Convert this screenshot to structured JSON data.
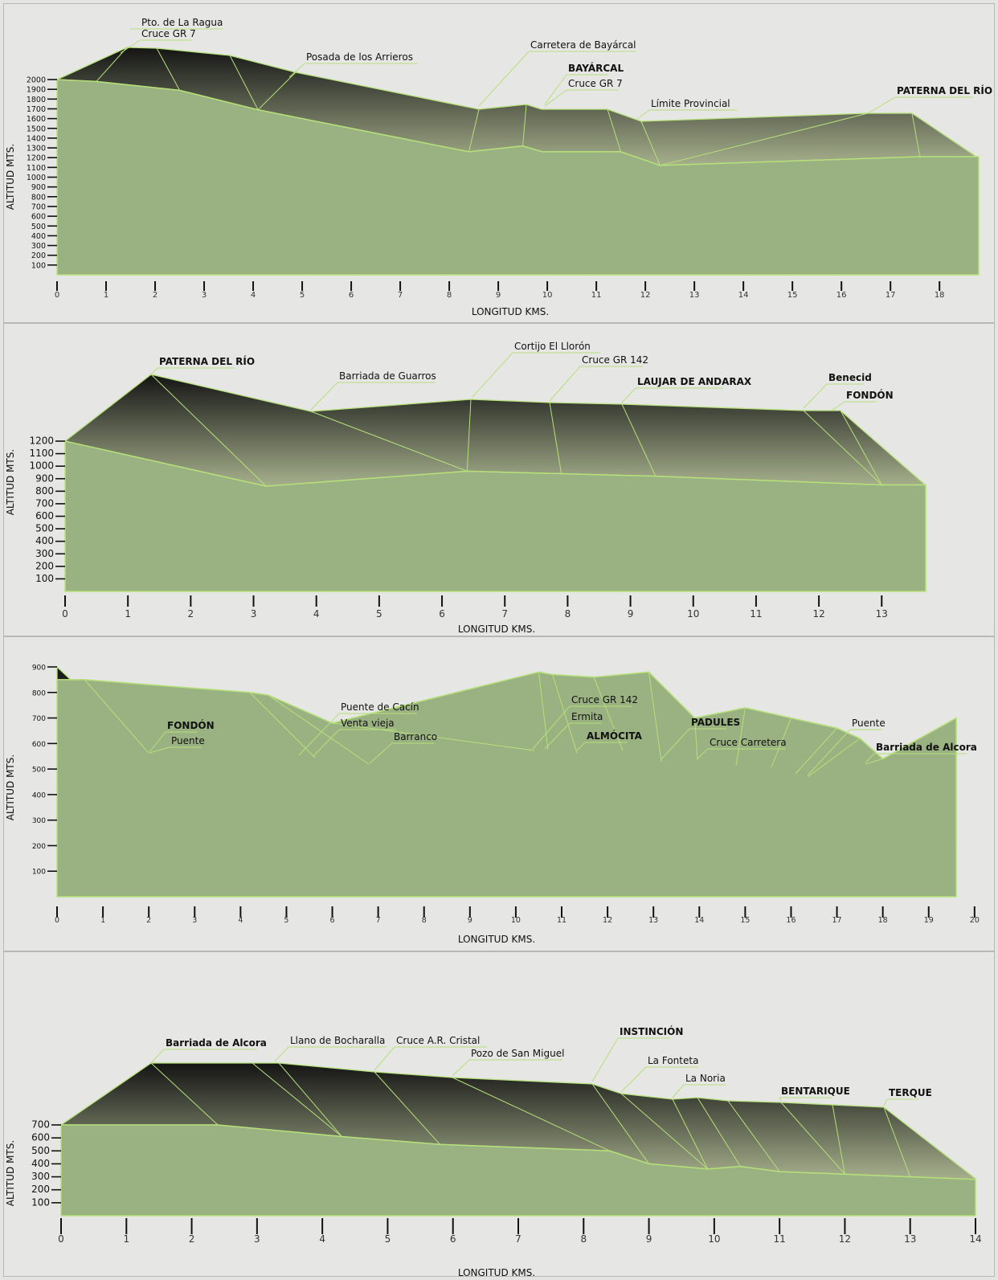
{
  "colors": {
    "background": "#e4e4e2",
    "ground_fill": "#9ab282",
    "profile_line": "#b6e07a",
    "block_top": "#141414",
    "block_bottom": "#a6b08c",
    "text": "#111111"
  },
  "chart_data": [
    {
      "type": "area",
      "xlabel": "LONGITUD KMS.",
      "ylabel": "ALTITUD MTS.",
      "xlim": [
        0,
        18.8
      ],
      "ylim": [
        0,
        2000
      ],
      "x_ticks": [
        "0",
        "1",
        "2",
        "3",
        "4",
        "5",
        "6",
        "7",
        "8",
        "9",
        "10",
        "11",
        "12",
        "13",
        "14",
        "15",
        "16",
        "17",
        "18"
      ],
      "y_ticks": [
        "100",
        "200",
        "300",
        "400",
        "500",
        "600",
        "700",
        "800",
        "900",
        "1000",
        "1100",
        "1200",
        "1300",
        "1400",
        "1500",
        "1600",
        "1700",
        "1800",
        "1900",
        "2000"
      ],
      "series": [
        {
          "x": [
            0,
            0.8,
            2.5,
            4.1,
            8.4,
            9.5,
            9.9,
            11.5,
            12.3,
            17.6,
            18.8
          ],
          "y": [
            2000,
            1980,
            1890,
            1690,
            1260,
            1320,
            1260,
            1260,
            1120,
            1210,
            1210
          ]
        }
      ],
      "annotations": [
        {
          "text": "Pto. de La Ragua",
          "x": 1.5,
          "bold": false
        },
        {
          "text": "Cruce GR 7",
          "x": 2.1,
          "bold": false
        },
        {
          "text": "Posada de los Arrieros",
          "x": 4.8,
          "bold": false
        },
        {
          "text": "Carretera de Bayárcal",
          "x": 8.6,
          "bold": false
        },
        {
          "text": "BAYÁRCAL",
          "x": 10.2,
          "bold": true
        },
        {
          "text": "Cruce GR 7",
          "x": 10.0,
          "bold": false
        },
        {
          "text": "Límite Provincial",
          "x": 12.0,
          "bold": false
        },
        {
          "text": "PATERNA DEL RÍO",
          "x": 17.5,
          "bold": true
        }
      ]
    },
    {
      "type": "area",
      "xlabel": "LONGITUD KMS.",
      "ylabel": "ALTITUD MTS.",
      "xlim": [
        0,
        13.7
      ],
      "ylim": [
        0,
        1200
      ],
      "x_ticks": [
        "0",
        "1",
        "2",
        "3",
        "4",
        "5",
        "6",
        "7",
        "8",
        "9",
        "10",
        "11",
        "12",
        "13"
      ],
      "y_ticks": [
        "100",
        "200",
        "300",
        "400",
        "500",
        "600",
        "700",
        "800",
        "900",
        "1000",
        "1100",
        "1200"
      ],
      "series": [
        {
          "x": [
            0,
            3.2,
            6.4,
            7.9,
            9.4,
            13.0,
            13.7
          ],
          "y": [
            1200,
            840,
            960,
            940,
            920,
            850,
            850
          ]
        }
      ],
      "annotations": [
        {
          "text": "PATERNA DEL RÍO",
          "x": 1.3,
          "bold": true
        },
        {
          "text": "Barriada de Guarros",
          "x": 3.9,
          "bold": false
        },
        {
          "text": "Cortijo El Llorón",
          "x": 6.5,
          "bold": false
        },
        {
          "text": "Cruce GR 142",
          "x": 7.7,
          "bold": false
        },
        {
          "text": "LAUJAR DE ANDARAX",
          "x": 8.8,
          "bold": true
        },
        {
          "text": "Benecid",
          "x": 11.8,
          "bold": true
        },
        {
          "text": "FONDÓN",
          "x": 12.4,
          "bold": true
        }
      ]
    },
    {
      "type": "area",
      "xlabel": "LONGITUD KMS.",
      "ylabel": "ALTITUD MTS.",
      "xlim": [
        0,
        19.6
      ],
      "ylim": [
        0,
        900
      ],
      "x_ticks": [
        "0",
        "1",
        "2",
        "3",
        "4",
        "5",
        "6",
        "7",
        "8",
        "9",
        "10",
        "11",
        "12",
        "13",
        "14",
        "15",
        "16",
        "17",
        "18",
        "19",
        "20"
      ],
      "y_ticks": [
        "100",
        "200",
        "300",
        "400",
        "500",
        "600",
        "700",
        "800",
        "900"
      ],
      "series": [
        {
          "x": [
            0,
            0.6,
            4.2,
            4.6,
            6.0,
            10.5,
            10.8,
            11.7,
            12.9,
            13.9,
            15.0,
            16.0,
            17.0,
            17.5,
            18.0,
            19.6
          ],
          "y": [
            850,
            850,
            800,
            790,
            680,
            880,
            870,
            860,
            880,
            700,
            740,
            700,
            660,
            620,
            540,
            700
          ]
        }
      ],
      "annotations": [
        {
          "text": "FONDÓN",
          "x": 2.0,
          "bold": true
        },
        {
          "text": "Puente",
          "x": 2.3,
          "bold": false
        },
        {
          "text": "Puente de Cacín",
          "x": 5.6,
          "bold": false
        },
        {
          "text": "Venta vieja",
          "x": 6.0,
          "bold": false
        },
        {
          "text": "Barranco",
          "x": 6.8,
          "bold": false
        },
        {
          "text": "Cruce GR 142",
          "x": 10.9,
          "bold": false
        },
        {
          "text": "Ermita",
          "x": 10.8,
          "bold": false
        },
        {
          "text": "ALMÓCITA",
          "x": 11.8,
          "bold": true
        },
        {
          "text": "PADULES",
          "x": 13.7,
          "bold": true
        },
        {
          "text": "Cruce Carretera",
          "x": 14.5,
          "bold": false
        },
        {
          "text": "Puente",
          "x": 17.3,
          "bold": false
        },
        {
          "text": "Barriada de Alcora",
          "x": 18.2,
          "bold": true
        }
      ]
    },
    {
      "type": "area",
      "xlabel": "LONGITUD KMS.",
      "ylabel": "ALTITUD MTS.",
      "xlim": [
        0,
        14
      ],
      "ylim": [
        0,
        700
      ],
      "x_ticks": [
        "0",
        "1",
        "2",
        "3",
        "4",
        "5",
        "6",
        "7",
        "8",
        "9",
        "10",
        "11",
        "12",
        "13",
        "14"
      ],
      "y_ticks": [
        "100",
        "200",
        "300",
        "400",
        "500",
        "600",
        "700"
      ],
      "series": [
        {
          "x": [
            0,
            2.4,
            4.3,
            5.8,
            8.4,
            9.0,
            9.9,
            10.4,
            11.0,
            12.0,
            13.0,
            14.0
          ],
          "y": [
            700,
            700,
            610,
            550,
            500,
            400,
            360,
            380,
            340,
            320,
            300,
            280
          ]
        }
      ],
      "annotations": [
        {
          "text": "Barriada de Alcora",
          "x": 2.2,
          "bold": true
        },
        {
          "text": "Llano de Bocharalla",
          "x": 3.5,
          "bold": false
        },
        {
          "text": "Cruce A.R. Cristal",
          "x": 4.8,
          "bold": false
        },
        {
          "text": "Pozo de San Miguel",
          "x": 6.2,
          "bold": false
        },
        {
          "text": "INSTINCIÓN",
          "x": 8.6,
          "bold": true
        },
        {
          "text": "La Fonteta",
          "x": 9.0,
          "bold": false
        },
        {
          "text": "La Noria",
          "x": 9.6,
          "bold": false
        },
        {
          "text": "BENTARIQUE",
          "x": 11.2,
          "bold": true
        },
        {
          "text": "TERQUE",
          "x": 13.3,
          "bold": true
        }
      ]
    }
  ]
}
